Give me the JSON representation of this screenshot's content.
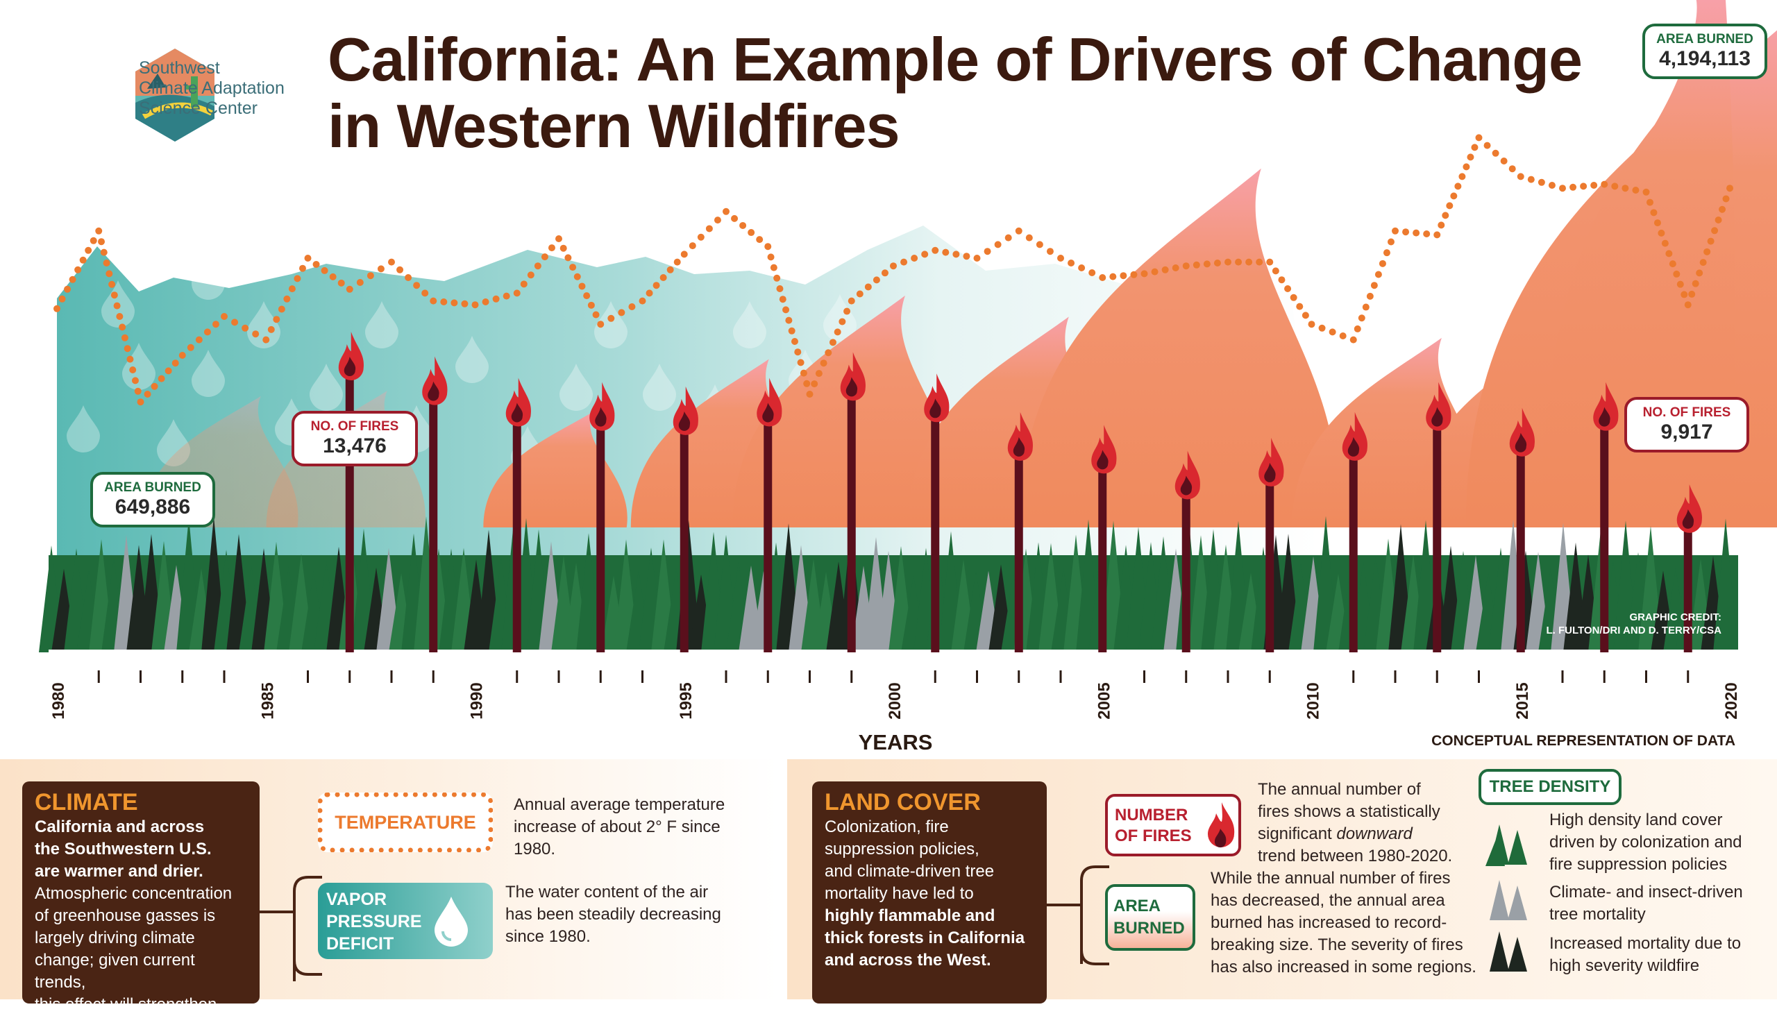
{
  "logo": {
    "line1": "Southwest",
    "line2": "Climate Adaptation",
    "line3": "Science Center"
  },
  "title": {
    "line1": "California: An Example of Drivers of Change",
    "line2": "in Western Wildfires"
  },
  "colors": {
    "title": "#3b1a0f",
    "fire_orange": "#f08a5d",
    "fire_pink": "#f7a0a0",
    "temperature_dots": "#ec7a2e",
    "mountain_teal": "#6cc1bd",
    "forest_green": "#1f6b3a",
    "dead_gray": "#9aa0a6",
    "burned_black": "#1e2620",
    "fire_post": "#5a0f1c",
    "flame_red": "#d9282f"
  },
  "callouts": {
    "area_start": {
      "label": "AREA BURNED",
      "value": "649,886"
    },
    "fires_start": {
      "label": "NO. OF FIRES",
      "value": "13,476"
    },
    "area_end": {
      "label": "AREA BURNED",
      "value": "4,194,113"
    },
    "fires_end": {
      "label": "NO. OF FIRES",
      "value": "9,917"
    }
  },
  "credit": {
    "line1": "GRAPHIC CREDIT:",
    "line2": "L. FULTON/DRI AND D. TERRY/CSA"
  },
  "xlabel": "YEARS",
  "concept_note": "CONCEPTUAL REPRESENTATION OF DATA",
  "chart_data": {
    "type": "line",
    "note": "Conceptual representation of data",
    "xlabel": "YEARS",
    "x_ticks": [
      "1980",
      "1985",
      "1990",
      "1995",
      "2000",
      "2005",
      "2010",
      "2015",
      "2020"
    ],
    "xlim": [
      1980,
      2020
    ],
    "series": [
      {
        "name": "TEMPERATURE",
        "style": "dotted-line",
        "x": [
          1980,
          1981,
          1982,
          1983,
          1984,
          1985,
          1986,
          1987,
          1988,
          1989,
          1990,
          1991,
          1992,
          1993,
          1994,
          1995,
          1996,
          1997,
          1998,
          1999,
          2000,
          2001,
          2002,
          2003,
          2004,
          2005,
          2006,
          2007,
          2008,
          2009,
          2010,
          2011,
          2012,
          2013,
          2014,
          2015,
          2016,
          2017,
          2018,
          2019,
          2020
        ],
        "values": [
          0.42,
          0.62,
          0.18,
          0.3,
          0.4,
          0.34,
          0.55,
          0.47,
          0.54,
          0.44,
          0.43,
          0.46,
          0.6,
          0.38,
          0.44,
          0.56,
          0.67,
          0.58,
          0.2,
          0.44,
          0.53,
          0.57,
          0.55,
          0.62,
          0.55,
          0.5,
          0.51,
          0.53,
          0.54,
          0.54,
          0.38,
          0.34,
          0.62,
          0.61,
          0.86,
          0.76,
          0.73,
          0.74,
          0.72,
          0.43,
          0.73
        ]
      },
      {
        "name": "NUMBER OF FIRES",
        "style": "fire-posts",
        "x": [
          1987,
          1989,
          1991,
          1993,
          1995,
          1997,
          1999,
          2001,
          2003,
          2005,
          2007,
          2009,
          2011,
          2013,
          2015,
          2017,
          2019
        ],
        "values": [
          13476,
          12900,
          12400,
          12300,
          12200,
          12400,
          13000,
          12500,
          11600,
          11300,
          10700,
          11000,
          11600,
          12300,
          11700,
          12300,
          9917
        ],
        "labeled_points": [
          {
            "x": 1987,
            "label": "13,476"
          },
          {
            "x": 2019,
            "label": "9,917"
          }
        ]
      },
      {
        "name": "AREA BURNED",
        "style": "flame-shapes",
        "x": [
          1984,
          1987,
          1992,
          1996,
          1999,
          2003,
          2007,
          2012,
          2015,
          2019
        ],
        "values": [
          649886,
          700000,
          500000,
          1000000,
          1600000,
          1400000,
          2800000,
          1200000,
          1300000,
          4194113
        ],
        "labeled_points": [
          {
            "x": 1980,
            "label": "649,886"
          },
          {
            "x": 2020,
            "label": "4,194,113"
          }
        ]
      }
    ],
    "grid": false
  },
  "panels": {
    "climate": {
      "heading": "CLIMATE",
      "bold_text": [
        "California and across",
        "the Southwestern U.S.",
        "are warmer and drier."
      ],
      "text": [
        "Atmospheric concentration",
        "of greenhouse gasses is",
        "largely driving climate",
        "change; given current trends,",
        "this effect will strengthen."
      ],
      "temperature_tag": "TEMPERATURE",
      "temperature_desc": [
        "Annual average temperature",
        "increase of about 2° F since",
        "1980."
      ],
      "vpd_tag": [
        "VAPOR",
        "PRESSURE",
        "DEFICIT"
      ],
      "vpd_desc": [
        "The water content of the air",
        "has been steadily decreasing",
        "since 1980."
      ]
    },
    "landcover": {
      "heading": "LAND COVER",
      "text": [
        "Colonization, fire",
        "suppression policies,",
        "and climate-driven tree",
        "mortality have led to"
      ],
      "bold_text": [
        "highly flammable and",
        "thick forests in California",
        "and across the West."
      ],
      "fires_tag": [
        "NUMBER",
        "OF FIRES"
      ],
      "fires_desc_a": [
        "The annual number of",
        "fires shows a statistically"
      ],
      "fires_desc_b": "significant ",
      "fires_desc_b_italic": "downward",
      "fires_desc_c": "trend between 1980-2020.",
      "area_tag": [
        "AREA",
        "BURNED"
      ],
      "area_desc": [
        "While the annual number of fires",
        "has decreased, the annual area",
        "burned has increased to record-",
        "breaking size. The severity of fires",
        "has also increased in some regions."
      ],
      "tree_tag": "TREE DENSITY",
      "tree_legend": [
        {
          "icon": "green-tree-icon",
          "lines": [
            "High density land cover",
            "driven by colonization and",
            "fire suppression policies"
          ]
        },
        {
          "icon": "gray-tree-icon",
          "lines": [
            "Climate- and insect-driven",
            "tree mortality"
          ]
        },
        {
          "icon": "black-tree-icon",
          "lines": [
            "Increased mortality due to",
            "high severity wildfire"
          ]
        }
      ]
    }
  }
}
